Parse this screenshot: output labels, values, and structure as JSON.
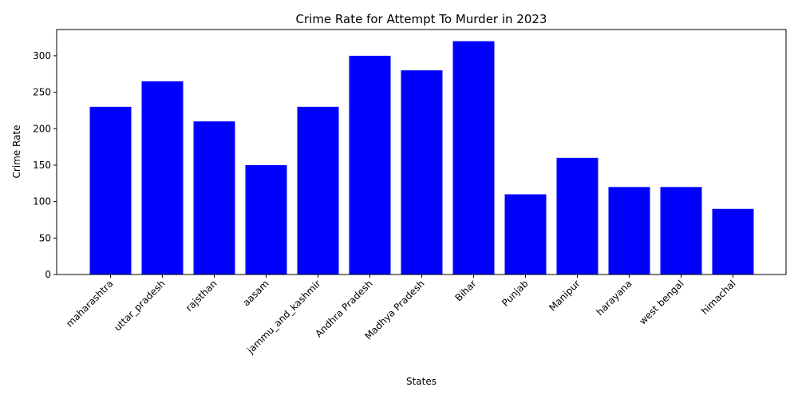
{
  "chart_data": {
    "type": "bar",
    "title": "Crime Rate for Attempt To Murder in 2023",
    "xlabel": "States",
    "ylabel": "Crime Rate",
    "categories": [
      "maharashtra",
      "uttar_pradesh",
      "rajsthan",
      "aasam",
      "jammu_and_kashmir",
      "Andhra Pradesh",
      "Madhya Pradesh",
      "Bihar",
      "Punjab",
      "Manipur",
      "harayana",
      "west bengal",
      "himachal"
    ],
    "values": [
      230,
      265,
      210,
      150,
      230,
      300,
      280,
      320,
      110,
      160,
      120,
      120,
      90
    ],
    "ylim": [
      0,
      336
    ],
    "yticks": [
      0,
      50,
      100,
      150,
      200,
      250,
      300
    ],
    "bar_color": "#0000ff",
    "grid": false,
    "xtick_rotation": 45
  }
}
